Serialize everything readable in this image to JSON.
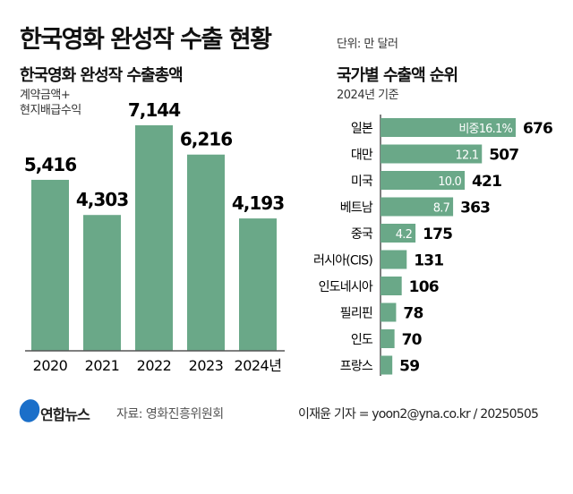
{
  "title": "한국영화 완성작 수출 현황",
  "unit": "단위: 만 달러",
  "footer": {
    "logo": "연합뉴스",
    "source": "자료: 영화진흥위원회",
    "credit": "이재윤 기자 = yoon2@yna.co.kr / 20250505"
  },
  "colors": {
    "bar": "#6aa888",
    "axis": "#555555"
  },
  "chart_data": [
    {
      "type": "bar",
      "title": "한국영화 완성작 수출총액",
      "subtitle": "계약금액+\n현지배급수익",
      "categories": [
        "2020",
        "2021",
        "2022",
        "2023",
        "2024년"
      ],
      "values": [
        5416,
        4303,
        7144,
        6216,
        4193
      ],
      "value_labels": [
        "5,416",
        "4,303",
        "7,144",
        "6,216",
        "4,193"
      ]
    },
    {
      "type": "bar",
      "orientation": "horizontal",
      "title": "국가별 수출액 순위",
      "subtitle": "2024년 기준",
      "categories": [
        "일본",
        "대만",
        "미국",
        "베트남",
        "중국",
        "러시아(CIS)",
        "인도네시아",
        "필리핀",
        "인도",
        "프랑스"
      ],
      "values": [
        676,
        507,
        421,
        363,
        175,
        131,
        106,
        78,
        70,
        59
      ],
      "share_labels": [
        "비중16.1%",
        "12.1",
        "10.0",
        "8.7",
        "4.2",
        "",
        "",
        "",
        "",
        ""
      ]
    }
  ]
}
